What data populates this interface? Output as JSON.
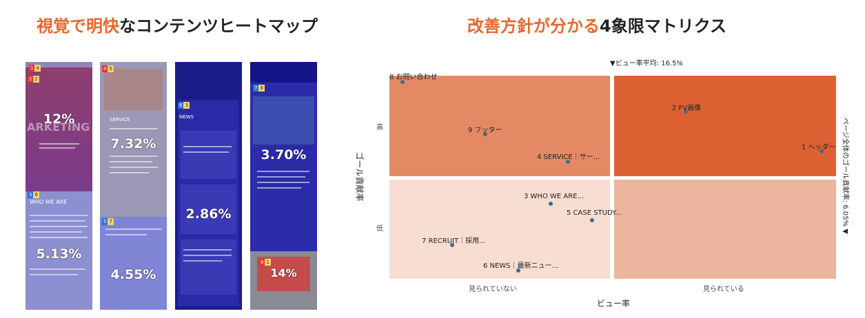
{
  "headings": {
    "left_accent": "視覚で明快",
    "left_rest": "なコンテンツヒートマップ",
    "right_accent": "改善方針が分かる",
    "right_rest": "4象限マトリクス"
  },
  "heatmap": {
    "col1": {
      "tags": [
        {
          "n": "1",
          "r": "4"
        },
        {
          "n": "2",
          "r": "2"
        },
        {
          "n": "3",
          "r": "6"
        }
      ],
      "pcts": [
        "12%",
        "5.13%"
      ],
      "texts": [
        "ARKETING",
        "WHO WE ARE"
      ]
    },
    "col2": {
      "tags": [
        {
          "n": "4",
          "r": "5"
        },
        {
          "n": "5",
          "r": "7"
        }
      ],
      "pcts": [
        "7.32%",
        "4.55%"
      ],
      "texts": [
        "SERVICE"
      ]
    },
    "col3": {
      "tags": [
        {
          "n": "6",
          "r": "3"
        }
      ],
      "pcts": [
        "2.86%"
      ],
      "texts": [
        "NEWS"
      ]
    },
    "col4": {
      "tags": [
        {
          "n": "7",
          "r": "8"
        },
        {
          "n": "8",
          "r": "1"
        }
      ],
      "pcts": [
        "3.70%",
        "14%"
      ]
    }
  },
  "matrix": {
    "x_avg_label": "▼ビュー率平均: 16.5%",
    "y_avg_label": "ページ全体のゴール貢献率: 6.05% ▼",
    "x_axis_title": "ビュー率",
    "y_axis_title": "ゴール貢献率",
    "x_low": "見られていない",
    "x_high": "見られている",
    "y_high": "高",
    "y_low": "低",
    "colors": {
      "top_left": "#e38a64",
      "top_right": "#dd6133",
      "bottom_left": "#f8ddd2",
      "bottom_right": "#ebb59d",
      "point": "#3d6e8f"
    },
    "points": [
      {
        "label": "8 お問い合わせ"
      },
      {
        "label": "2 FV画像"
      },
      {
        "label": "9 フッター"
      },
      {
        "label": "1 ヘッダー"
      },
      {
        "label": "4 SERVICE｜サー..."
      },
      {
        "label": "3 WHO WE ARE..."
      },
      {
        "label": "5 CASE STUDY..."
      },
      {
        "label": "7 RECRUIT｜採用..."
      },
      {
        "label": "6 NEWS｜最新ニュー..."
      }
    ]
  }
}
